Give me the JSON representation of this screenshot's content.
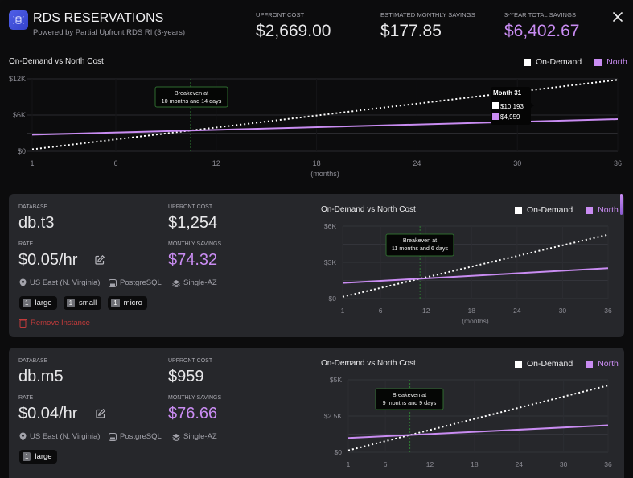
{
  "header": {
    "title": "RDS RESERVATIONS",
    "subtitle": "Powered by Partial Upfront RDS RI (3-years)",
    "logo_icon": "database-icon",
    "stats": [
      {
        "label": "UPFRONT COST",
        "value": "$2,669.00"
      },
      {
        "label": "ESTIMATED MONTHLY SAVINGS",
        "value": "$177.85"
      },
      {
        "label": "3-YEAR TOTAL SAVINGS",
        "value": "$6,402.67"
      }
    ],
    "close_icon": "close-icon"
  },
  "colors": {
    "accent": "#c98cf2",
    "on_demand": "#ffffff",
    "north": "#c98cf2",
    "breakeven": "#2e7d32",
    "danger": "#c23b3b",
    "logo": "#4350dc"
  },
  "legend": {
    "on_demand": "On-Demand",
    "north": "North"
  },
  "main_chart": {
    "title": "On-Demand vs North Cost",
    "tooltip": {
      "title": "Month 31",
      "on_demand": "$10,193",
      "north": "$4,959"
    },
    "breakeven_label_1": "Breakeven at",
    "breakeven_label_2": "10 months and 14 days"
  },
  "cards": [
    {
      "database_label": "DATABASE",
      "database": "db.t3",
      "upfront_label": "UPFRONT COST",
      "upfront": "$1,254",
      "rate_label": "RATE",
      "rate": "$0.05/hr",
      "savings_label": "MONTHLY SAVINGS",
      "savings": "$74.32",
      "region": "US East (N. Virginia)",
      "engine": "PostgreSQL",
      "deployment": "Single-AZ",
      "tags": [
        {
          "count": "1",
          "size": "large"
        },
        {
          "count": "1",
          "size": "small"
        },
        {
          "count": "1",
          "size": "micro"
        }
      ],
      "remove_label": "Remove Instance",
      "chart_title": "On-Demand vs North Cost",
      "breakeven_label_1": "Breakeven at",
      "breakeven_label_2": "11 months and 6 days"
    },
    {
      "database_label": "DATABASE",
      "database": "db.m5",
      "upfront_label": "UPFRONT COST",
      "upfront": "$959",
      "rate_label": "RATE",
      "rate": "$0.04/hr",
      "savings_label": "MONTHLY SAVINGS",
      "savings": "$76.66",
      "region": "US East (N. Virginia)",
      "engine": "PostgreSQL",
      "deployment": "Single-AZ",
      "tags": [
        {
          "count": "1",
          "size": "large"
        }
      ],
      "chart_title": "On-Demand vs North Cost",
      "breakeven_label_1": "Breakeven at",
      "breakeven_label_2": "9 months and 9 days"
    }
  ],
  "chart_data": [
    {
      "type": "line",
      "title": "On-Demand vs North Cost",
      "xlabel": "(months)",
      "ylabel": "",
      "x_ticks": [
        1,
        6,
        12,
        18,
        24,
        30,
        36
      ],
      "y_ticks": [
        "$0",
        "$6K",
        "$12K"
      ],
      "y_tick_values": [
        0,
        6000,
        12000
      ],
      "ylim": [
        0,
        12000
      ],
      "xlim": [
        1,
        36
      ],
      "grid": true,
      "legend": "top-right",
      "series": [
        {
          "name": "On-Demand",
          "style": "dotted",
          "start": [
            1,
            329
          ],
          "end": [
            36,
            11837
          ]
        },
        {
          "name": "North",
          "style": "solid",
          "start": [
            1,
            2743
          ],
          "end": [
            36,
            5329
          ]
        }
      ],
      "breakeven_month": 10.47,
      "tooltip_month": 31,
      "tooltip_values": {
        "On-Demand": 10193,
        "North": 4959
      }
    },
    {
      "type": "line",
      "title": "On-Demand vs North Cost",
      "xlabel": "(months)",
      "x_ticks": [
        1,
        6,
        12,
        18,
        24,
        30,
        36
      ],
      "y_ticks": [
        "$0",
        "$3K",
        "$6K"
      ],
      "y_tick_values": [
        0,
        3000,
        6000
      ],
      "ylim": [
        0,
        6000
      ],
      "xlim": [
        1,
        36
      ],
      "grid": true,
      "legend": "top-right",
      "series": [
        {
          "name": "On-Demand",
          "style": "dotted",
          "start": [
            1,
            147
          ],
          "end": [
            36,
            5292
          ]
        },
        {
          "name": "North",
          "style": "solid",
          "start": [
            1,
            1289
          ],
          "end": [
            36,
            2514
          ]
        }
      ],
      "breakeven_month": 11.2
    },
    {
      "type": "line",
      "title": "On-Demand vs North Cost",
      "xlabel": "",
      "x_ticks": [
        1,
        6,
        12,
        18,
        24,
        30,
        36
      ],
      "y_ticks": [
        "$0",
        "$2.5K",
        "$5K"
      ],
      "y_tick_values": [
        0,
        2500,
        5000
      ],
      "ylim": [
        0,
        5000
      ],
      "xlim": [
        1,
        36
      ],
      "grid": true,
      "legend": "top-right",
      "series": [
        {
          "name": "On-Demand",
          "style": "dotted",
          "start": [
            1,
            128
          ],
          "end": [
            36,
            4608
          ]
        },
        {
          "name": "North",
          "style": "solid",
          "start": [
            1,
            984
          ],
          "end": [
            36,
            1859
          ]
        }
      ],
      "breakeven_month": 9.3
    }
  ]
}
